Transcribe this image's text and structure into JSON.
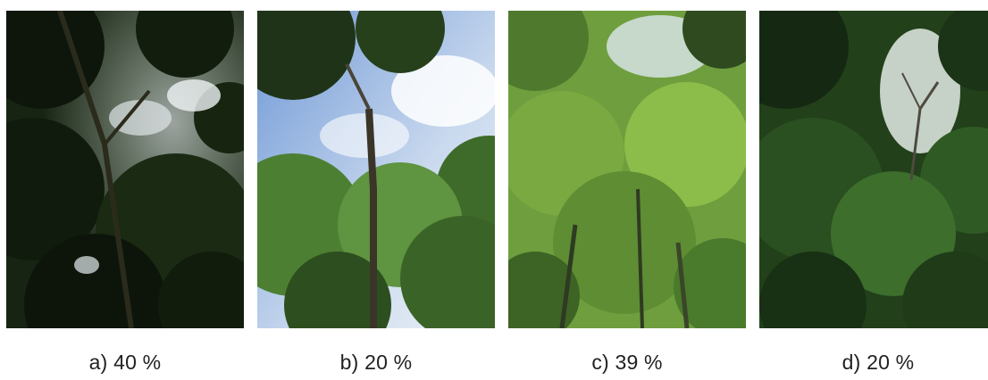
{
  "figure": {
    "panels": [
      {
        "caption": "a) 40 %",
        "value": 40
      },
      {
        "caption": "b) 20 %",
        "value": 20
      },
      {
        "caption": "c) 39 %",
        "value": 39
      },
      {
        "caption": "d) 20 %",
        "value": 20
      }
    ]
  }
}
